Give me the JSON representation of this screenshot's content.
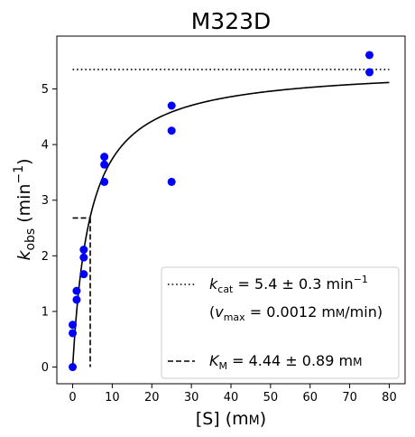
{
  "chart_data": {
    "type": "scatter",
    "title": "M323D",
    "xlabel": {
      "main": "[S] (m",
      "sc": "M",
      "close": ")"
    },
    "ylabel": {
      "k": "k",
      "sub": "obs",
      "unit": " (min",
      "sup": "−1",
      "close": ")"
    },
    "xlim": [
      -4,
      84
    ],
    "ylim": [
      -0.3,
      5.95
    ],
    "xticks": [
      0,
      10,
      20,
      30,
      40,
      50,
      60,
      70,
      80
    ],
    "yticks": [
      0,
      1,
      2,
      3,
      4,
      5
    ],
    "grid": false,
    "point_color": "#0000ff",
    "points": [
      {
        "x": 0,
        "y": 0.0
      },
      {
        "x": 0,
        "y": 0.61
      },
      {
        "x": 0,
        "y": 0.76
      },
      {
        "x": 1,
        "y": 1.21
      },
      {
        "x": 1,
        "y": 1.37
      },
      {
        "x": 2.8,
        "y": 1.67
      },
      {
        "x": 2.8,
        "y": 1.97
      },
      {
        "x": 2.8,
        "y": 2.11
      },
      {
        "x": 8,
        "y": 3.33
      },
      {
        "x": 8,
        "y": 3.64
      },
      {
        "x": 8,
        "y": 3.78
      },
      {
        "x": 25,
        "y": 3.33
      },
      {
        "x": 25,
        "y": 4.25
      },
      {
        "x": 25,
        "y": 4.7
      },
      {
        "x": 75,
        "y": 5.3
      },
      {
        "x": 75,
        "y": 5.61
      }
    ],
    "fit": {
      "kcat": 5.4,
      "KM": 4.44,
      "x_range": [
        0,
        80
      ],
      "color": "#000000"
    },
    "kcat_line": {
      "y": 5.35,
      "x_range": [
        0,
        80
      ]
    },
    "KM_line": {
      "x": 4.44,
      "y": 2.68
    },
    "legend": {
      "placement": "lower-right",
      "entries": [
        {
          "style": "dotted",
          "k": "k",
          "sub": "cat",
          "text": " = 5.4 ± 0.3 min",
          "sup": "−1"
        },
        {
          "style": "none",
          "text_a": "(",
          "v": "v",
          "sub": "max",
          "text_b": " = 0.0012 m",
          "sc": "M",
          "text_c": "/min)"
        },
        {
          "style": "dashed",
          "k": "K",
          "sub": "M",
          "text": " = 4.44 ± 0.89 m",
          "sc": "M"
        }
      ]
    }
  }
}
